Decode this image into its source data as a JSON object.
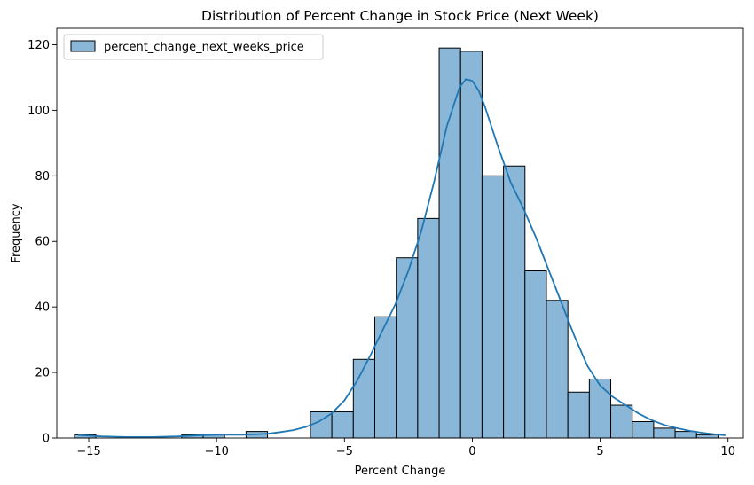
{
  "chart_data": {
    "type": "bar",
    "title": "Distribution of Percent Change in Stock Price (Next Week)",
    "xlabel": "Percent Change",
    "ylabel": "Frequency",
    "xlim": [
      -16.25,
      10.6
    ],
    "ylim": [
      0,
      125
    ],
    "xticks": [
      -15,
      -10,
      -5,
      0,
      5,
      10
    ],
    "yticks": [
      0,
      20,
      40,
      60,
      80,
      100,
      120
    ],
    "bin_width": 0.839,
    "bin_start": -15.56,
    "counts": [
      1,
      0,
      0,
      0,
      0,
      1,
      1,
      0,
      2,
      0,
      0,
      8,
      8,
      24,
      37,
      55,
      67,
      119,
      118,
      80,
      83,
      51,
      42,
      14,
      18,
      10,
      5,
      3,
      2,
      1
    ],
    "series": [
      {
        "name": "percent_change_next_weeks_price",
        "fill": "#8ab7d8",
        "edge": "#000000"
      }
    ],
    "kde": {
      "color": "#1f77b4",
      "x": [
        -15.4,
        -14.5,
        -13.5,
        -12.5,
        -11.5,
        -10.5,
        -10.0,
        -9.5,
        -9.0,
        -8.5,
        -8.0,
        -7.5,
        -7.0,
        -6.5,
        -6.0,
        -5.5,
        -5.0,
        -4.5,
        -4.0,
        -3.5,
        -3.0,
        -2.5,
        -2.0,
        -1.5,
        -1.0,
        -0.5,
        -0.25,
        0.0,
        0.25,
        0.5,
        1.0,
        1.5,
        2.0,
        2.5,
        3.0,
        3.5,
        4.0,
        4.5,
        5.0,
        5.5,
        6.0,
        6.5,
        7.0,
        7.5,
        8.0,
        8.5,
        9.0,
        9.5,
        9.9
      ],
      "y": [
        0.9,
        0.5,
        0.3,
        0.3,
        0.5,
        0.9,
        1.0,
        1.0,
        1.0,
        1.1,
        1.3,
        1.8,
        2.4,
        3.4,
        5.0,
        7.5,
        11.5,
        17.5,
        25.0,
        33.0,
        41.0,
        51.0,
        63.0,
        78.0,
        95.0,
        107.0,
        109.5,
        109.0,
        106.0,
        101.0,
        89.0,
        78.0,
        70.0,
        61.0,
        51.0,
        41.0,
        31.0,
        22.0,
        16.0,
        12.5,
        10.0,
        7.5,
        5.5,
        4.0,
        3.0,
        2.2,
        1.6,
        1.1,
        0.8
      ]
    },
    "legend": "upper-left",
    "grid": false
  }
}
